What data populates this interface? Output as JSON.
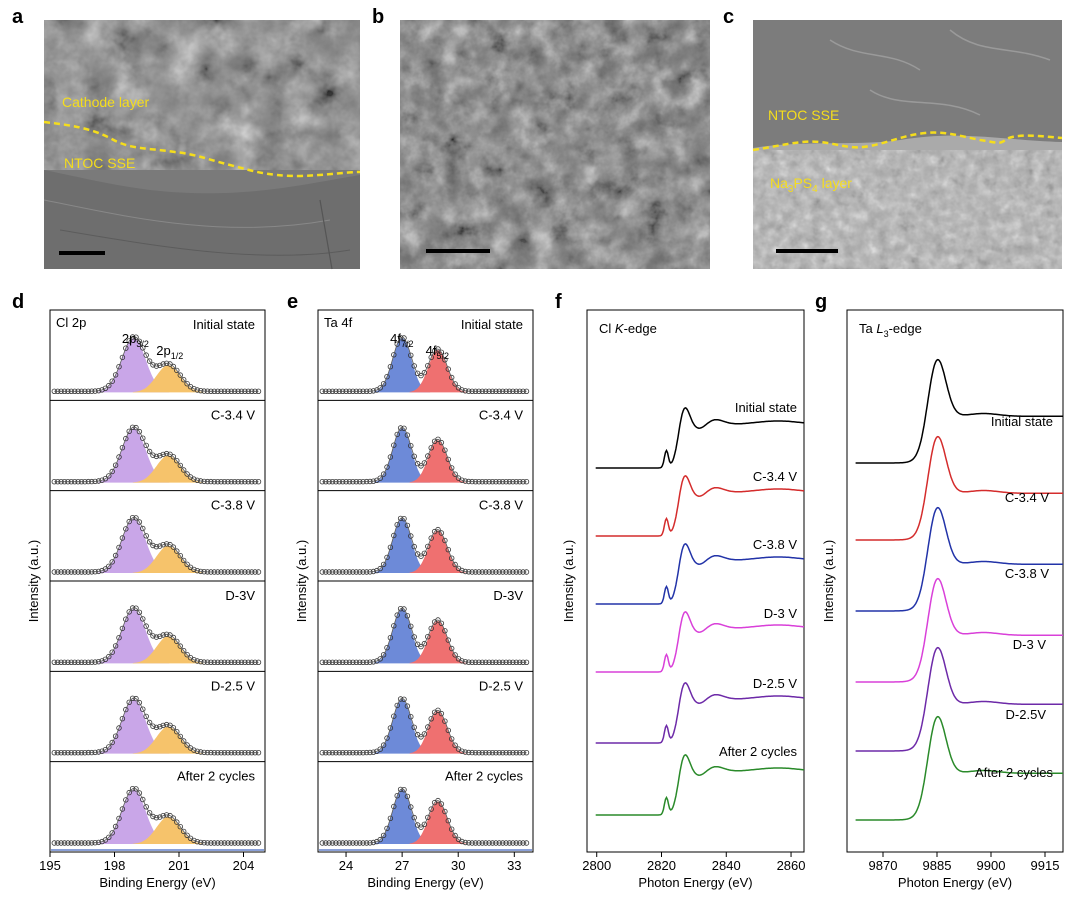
{
  "figure": {
    "panel_letters": [
      "a",
      "b",
      "c",
      "d",
      "e",
      "f",
      "g"
    ],
    "sem": {
      "a": {
        "label_top": "Cathode layer",
        "label_bottom": "NTOC SSE"
      },
      "b": {},
      "c": {
        "label_top": "NTOC SSE",
        "label_bottom_prefix": "Na",
        "label_bottom_sub1": "3",
        "label_bottom_mid": "PS",
        "label_bottom_sub2": "4",
        "label_bottom_suffix": " layer"
      }
    },
    "colors": {
      "sem_overlay": "#f5dd1c",
      "cl_p32_fill": "#c9a6e8",
      "cl_p12_fill": "#f6c36b",
      "ta_f72_fill": "#6d8ad8",
      "ta_f52_fill": "#ef7070",
      "xas_series": [
        "#000000",
        "#d42c2c",
        "#2233a8",
        "#d940d9",
        "#6d2aa8",
        "#2a8a2a"
      ],
      "axis_strip": "#8aa0d8"
    }
  },
  "chart_data": [
    {
      "type": "area",
      "panel": "d",
      "title": "Cl 2p",
      "peak_labels": {
        "a_main": "2p",
        "a_sub": "3/2",
        "b_main": "2p",
        "b_sub": "1/2"
      },
      "xlabel": "Binding Energy (eV)",
      "ylabel": "Intensity (a.u.)",
      "xlim": [
        195,
        205
      ],
      "xticks": [
        195,
        198,
        201,
        204
      ],
      "peaks": [
        {
          "name": "2p3/2",
          "center": 198.9,
          "width": 0.55,
          "height": 1.0
        },
        {
          "name": "2p1/2",
          "center": 200.5,
          "width": 0.55,
          "height": 0.5
        }
      ],
      "states": [
        "Initial state",
        "C-3.4 V",
        "C-3.8 V",
        "D-3V",
        "D-2.5 V",
        "After 2 cycles"
      ]
    },
    {
      "type": "area",
      "panel": "e",
      "title": "Ta 4f",
      "peak_labels": {
        "a_main": "4f",
        "a_sub": "7/2",
        "b_main": "4f",
        "b_sub": "5/2"
      },
      "xlabel": "Binding Energy (eV)",
      "ylabel": "Intensity (a.u.)",
      "xlim": [
        22.5,
        34
      ],
      "xticks": [
        24,
        27,
        30,
        33
      ],
      "peaks": [
        {
          "name": "4f7/2",
          "center": 27.0,
          "width": 0.5,
          "height": 1.0
        },
        {
          "name": "4f5/2",
          "center": 28.9,
          "width": 0.5,
          "height": 0.78
        }
      ],
      "states": [
        "Initial state",
        "C-3.4 V",
        "C-3.8 V",
        "D-3V",
        "D-2.5 V",
        "After 2 cycles"
      ]
    },
    {
      "type": "line",
      "panel": "f",
      "title_prefix": "Cl ",
      "title_italic": "K",
      "title_suffix": "-edge",
      "xlabel": "Photon Energy (eV)",
      "ylabel": "Intensity (a.u.)",
      "xlim": [
        2797,
        2864
      ],
      "xticks": [
        2800,
        2820,
        2840,
        2860
      ],
      "pre_edge_peak": 2821.5,
      "white_line": 2827,
      "series": [
        "Initial state",
        "C-3.4 V",
        "C-3.8 V",
        "D-3 V",
        "D-2.5 V",
        "After 2 cycles"
      ]
    },
    {
      "type": "line",
      "panel": "g",
      "title_prefix": "Ta ",
      "title_italic": "L",
      "title_sub": "3",
      "title_suffix": "-edge",
      "xlabel": "Photon Energy (eV)",
      "ylabel": "Intensity (a.u.)",
      "xlim": [
        9860,
        9920
      ],
      "xticks": [
        9870,
        9885,
        9900,
        9915
      ],
      "white_line": 9885,
      "series": [
        "Initial state",
        "C-3.4 V",
        "C-3.8 V",
        "D-3 V",
        "D-2.5V",
        "After 2 cycles"
      ]
    }
  ]
}
